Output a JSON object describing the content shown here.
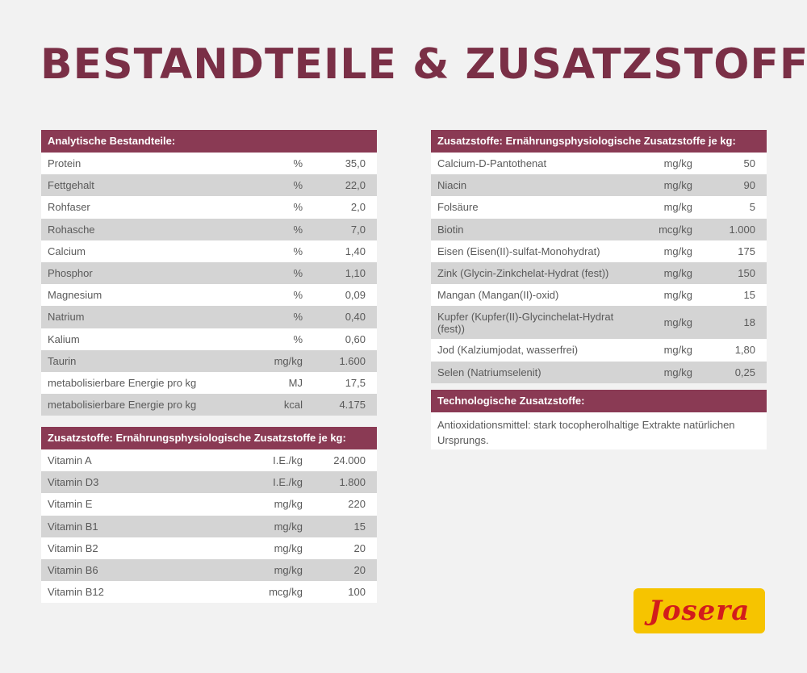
{
  "title": "BESTANDTEILE & ZUSATZSTOFFE",
  "analytic": {
    "header": "Analytische Bestandteile:",
    "rows": [
      {
        "name": "Protein",
        "unit": "%",
        "value": "35,0"
      },
      {
        "name": "Fettgehalt",
        "unit": "%",
        "value": "22,0"
      },
      {
        "name": "Rohfaser",
        "unit": "%",
        "value": "2,0"
      },
      {
        "name": "Rohasche",
        "unit": "%",
        "value": "7,0"
      },
      {
        "name": "Calcium",
        "unit": "%",
        "value": "1,40"
      },
      {
        "name": "Phosphor",
        "unit": "%",
        "value": "1,10"
      },
      {
        "name": "Magnesium",
        "unit": "%",
        "value": "0,09"
      },
      {
        "name": "Natrium",
        "unit": "%",
        "value": "0,40"
      },
      {
        "name": "Kalium",
        "unit": "%",
        "value": "0,60"
      },
      {
        "name": "Taurin",
        "unit": "mg/kg",
        "value": "1.600"
      },
      {
        "name": "metabolisierbare Energie pro kg",
        "unit": "MJ",
        "value": "17,5"
      },
      {
        "name": "metabolisierbare Energie pro kg",
        "unit": "kcal",
        "value": "4.175"
      }
    ]
  },
  "vitamins": {
    "header": "Zusatzstoffe: Ernährungsphysiologische Zusatzstoffe je kg:",
    "rows": [
      {
        "name": "Vitamin A",
        "unit": "I.E./kg",
        "value": "24.000"
      },
      {
        "name": "Vitamin D3",
        "unit": "I.E./kg",
        "value": "1.800"
      },
      {
        "name": "Vitamin E",
        "unit": "mg/kg",
        "value": "220"
      },
      {
        "name": "Vitamin B1",
        "unit": "mg/kg",
        "value": "15"
      },
      {
        "name": "Vitamin B2",
        "unit": "mg/kg",
        "value": "20"
      },
      {
        "name": "Vitamin B6",
        "unit": "mg/kg",
        "value": "20"
      },
      {
        "name": "Vitamin B12",
        "unit": "mcg/kg",
        "value": "100"
      }
    ]
  },
  "trace": {
    "header": "Zusatzstoffe: Ernährungsphysiologische Zusatzstoffe je kg:",
    "rows": [
      {
        "name": "Calcium-D-Pantothenat",
        "unit": "mg/kg",
        "value": "50"
      },
      {
        "name": "Niacin",
        "unit": "mg/kg",
        "value": "90"
      },
      {
        "name": "Folsäure",
        "unit": "mg/kg",
        "value": "5"
      },
      {
        "name": "Biotin",
        "unit": "mcg/kg",
        "value": "1.000"
      },
      {
        "name": "Eisen (Eisen(II)-sulfat-Monohydrat)",
        "unit": "mg/kg",
        "value": "175"
      },
      {
        "name": "Zink (Glycin-Zinkchelat-Hydrat (fest))",
        "unit": "mg/kg",
        "value": "150"
      },
      {
        "name": "Mangan (Mangan(II)-oxid)",
        "unit": "mg/kg",
        "value": "15"
      },
      {
        "name": "Kupfer (Kupfer(II)-Glycinchelat-Hydrat (fest))",
        "unit": "mg/kg",
        "value": "18"
      },
      {
        "name": "Jod (Kalziumjodat, wasserfrei)",
        "unit": "mg/kg",
        "value": "1,80"
      },
      {
        "name": "Selen (Natriumselenit)",
        "unit": "mg/kg",
        "value": "0,25"
      }
    ]
  },
  "tech": {
    "header": "Technologische Zusatzstoffe:",
    "text": "Antioxidationsmittel: stark tocopherolhaltige Extrakte natürlichen Ursprungs."
  },
  "logo": {
    "text": "Josera",
    "background": "#f6c400",
    "color": "#d21c1c"
  },
  "colors": {
    "header": "#8a3a54",
    "title": "#7a2f46",
    "row_alt": "#d4d4d4"
  }
}
